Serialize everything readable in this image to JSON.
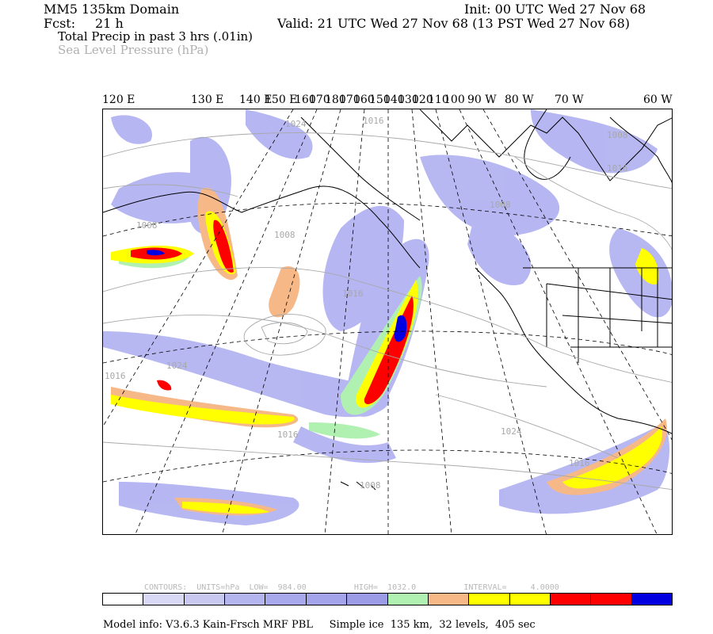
{
  "header": {
    "domain": "MM5 135km Domain",
    "init": "Init: 00 UTC Wed 27 Nov 68",
    "fcst_label": "Fcst:",
    "fcst_value": "21 h",
    "valid": "Valid: 21 UTC Wed 27 Nov 68 (13 PST Wed 27 Nov 68)",
    "field1": "Total Precip in past 3 hrs (.01in)",
    "field2": "Sea Level Pressure (hPa)"
  },
  "longitude_labels": [
    "120 E",
    "130 E",
    "140 E",
    "150 E",
    "160",
    "170",
    "180",
    "170",
    "160",
    "150",
    "140",
    "130",
    "120",
    "110",
    "100",
    "90 W",
    "80 W",
    "70 W",
    "60 W"
  ],
  "isobar_labels": [
    "1024",
    "1016",
    "1008",
    "1016",
    "1008",
    "1008",
    "1008",
    "1016",
    "1024",
    "1016",
    "1024",
    "1016",
    "1016",
    "1008"
  ],
  "contour_info": "CONTOURS:  UNITS=hPa  LOW=  984.00          HIGH=  1032.0          INTERVAL=     4.0000",
  "colorbar": {
    "colors": [
      "#ffffff",
      "#d9d9f5",
      "#c8c8f0",
      "#b4b4ee",
      "#a8a8ec",
      "#a4a4ea",
      "#9c9ce6",
      "#b0f0b0",
      "#f7b888",
      "#ffff00",
      "#ffff00",
      "#ff0000",
      "#ff0000",
      "#0000e0"
    ]
  },
  "model_info": "Model info: V3.6.3 Kain-Frsch MRF PBL     Simple ice  135 km,  32 levels,  405 sec"
}
